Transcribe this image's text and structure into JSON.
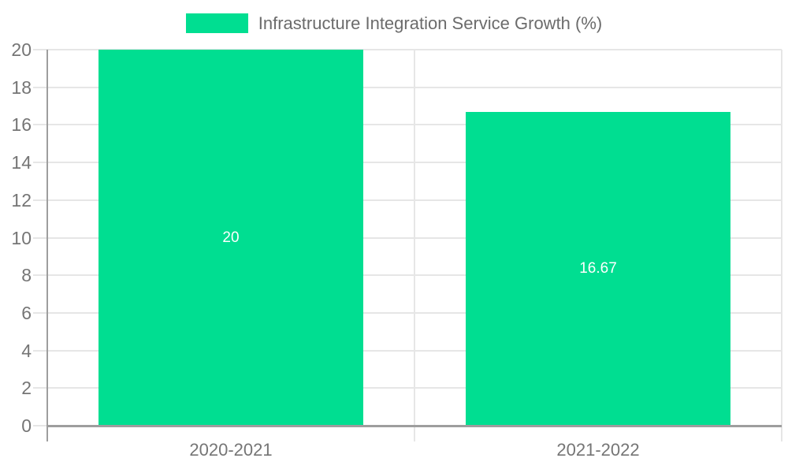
{
  "chart_data": {
    "type": "bar",
    "title": "Infrastructure Integration Service Growth (%)",
    "legend": {
      "position": "top",
      "entries": [
        "Infrastructure Integration Service Growth (%)"
      ]
    },
    "categories": [
      "2020-2021",
      "2021-2022"
    ],
    "values": [
      20,
      16.67
    ],
    "value_labels": [
      "20",
      "16.67"
    ],
    "xlabel": "",
    "ylabel": "",
    "ylim": [
      0,
      20
    ],
    "ytick_step": 2,
    "yticks": [
      0,
      2,
      4,
      6,
      8,
      10,
      12,
      14,
      16,
      18,
      20
    ],
    "grid": true,
    "colors": {
      "bar": "#00de91",
      "grid": "#e6e6e6",
      "axis": "#9e9e9e",
      "axis_text": "#757575",
      "legend_text": "#6b6b6b",
      "value_text": "#ffffff",
      "background": "#ffffff"
    }
  }
}
